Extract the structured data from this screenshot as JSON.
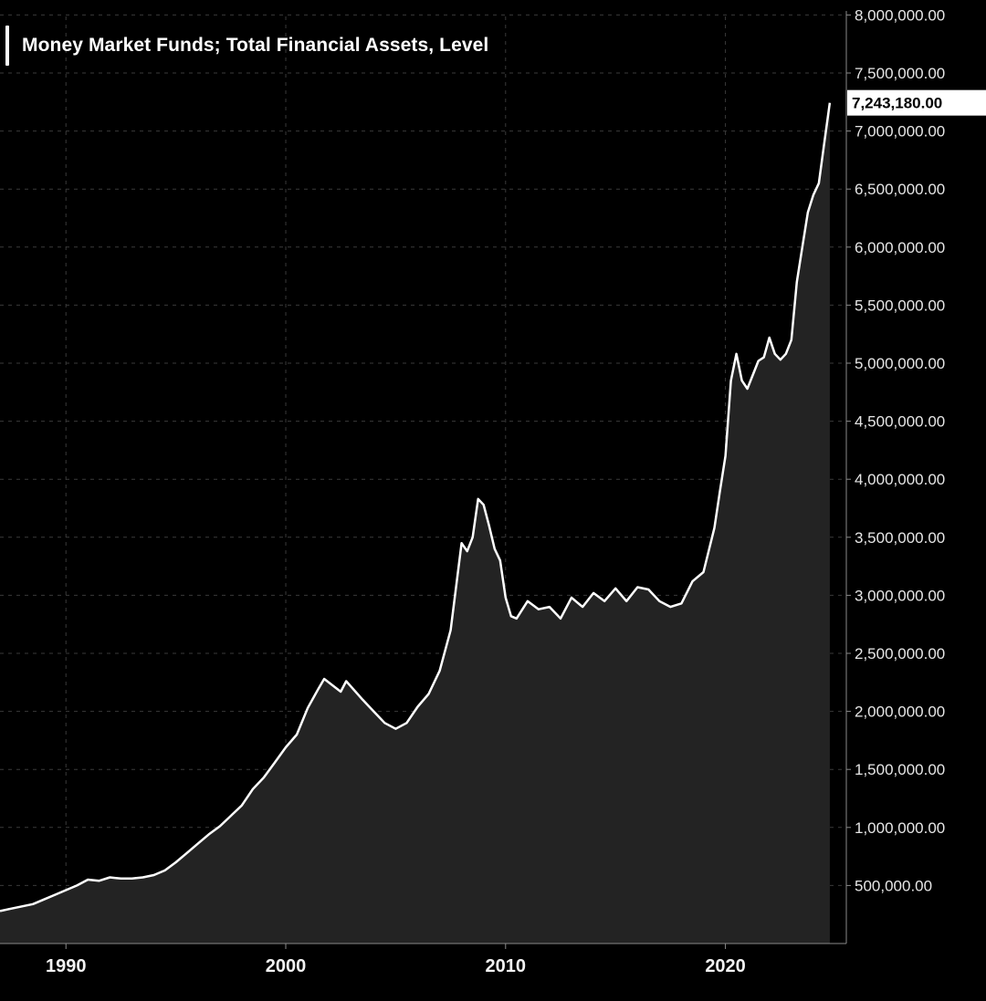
{
  "chart_data": {
    "type": "area",
    "title": "Money Market Funds; Total Financial Assets, Level",
    "xlabel": "",
    "ylabel": "",
    "xlim": [
      1987.0,
      2025.5
    ],
    "ylim": [
      0,
      8000000
    ],
    "grid": true,
    "legend_position": "top-left",
    "line_color": "#ffffff",
    "fill_color": "#232323",
    "background_color": "#000000",
    "last_value_label": "7,243,180.00",
    "x_ticks": [
      {
        "value": 1990,
        "label": "1990"
      },
      {
        "value": 2000,
        "label": "2000"
      },
      {
        "value": 2010,
        "label": "2010"
      },
      {
        "value": 2020,
        "label": "2020"
      }
    ],
    "y_ticks": [
      {
        "value": 500000,
        "label": "500,000.00"
      },
      {
        "value": 1000000,
        "label": "1,000,000.00"
      },
      {
        "value": 1500000,
        "label": "1,500,000.00"
      },
      {
        "value": 2000000,
        "label": "2,000,000.00"
      },
      {
        "value": 2500000,
        "label": "2,500,000.00"
      },
      {
        "value": 3000000,
        "label": "3,000,000.00"
      },
      {
        "value": 3500000,
        "label": "3,500,000.00"
      },
      {
        "value": 4000000,
        "label": "4,000,000.00"
      },
      {
        "value": 4500000,
        "label": "4,500,000.00"
      },
      {
        "value": 5000000,
        "label": "5,000,000.00"
      },
      {
        "value": 5500000,
        "label": "5,500,000.00"
      },
      {
        "value": 6000000,
        "label": "6,000,000.00"
      },
      {
        "value": 6500000,
        "label": "6,500,000.00"
      },
      {
        "value": 7000000,
        "label": "7,000,000.00"
      },
      {
        "value": 7500000,
        "label": "7,500,000.00"
      },
      {
        "value": 8000000,
        "label": "8,000,000.00"
      }
    ],
    "series": [
      {
        "name": "Money Market Funds; Total Financial Assets, Level",
        "x": [
          1987.0,
          1987.5,
          1988.0,
          1988.5,
          1989.0,
          1989.5,
          1990.0,
          1990.5,
          1991.0,
          1991.5,
          1992.0,
          1992.5,
          1993.0,
          1993.5,
          1994.0,
          1994.5,
          1995.0,
          1995.5,
          1996.0,
          1996.5,
          1997.0,
          1997.5,
          1998.0,
          1998.5,
          1999.0,
          1999.5,
          2000.0,
          2000.5,
          2001.0,
          2001.5,
          2001.75,
          2002.5,
          2002.75,
          2003.5,
          2004.0,
          2004.5,
          2005.0,
          2005.5,
          2006.0,
          2006.5,
          2007.0,
          2007.5,
          2008.0,
          2008.25,
          2008.5,
          2008.75,
          2009.0,
          2009.25,
          2009.5,
          2009.75,
          2010.0,
          2010.25,
          2010.5,
          2011.0,
          2011.5,
          2012.0,
          2012.5,
          2013.0,
          2013.5,
          2014.0,
          2014.5,
          2015.0,
          2015.5,
          2016.0,
          2016.5,
          2017.0,
          2017.5,
          2018.0,
          2018.5,
          2019.0,
          2019.5,
          2019.75,
          2020.0,
          2020.25,
          2020.5,
          2020.75,
          2021.0,
          2021.5,
          2021.75,
          2022.0,
          2022.25,
          2022.5,
          2022.75,
          2023.0,
          2023.25,
          2023.5,
          2023.75,
          2024.0,
          2024.25,
          2024.5,
          2024.75
        ],
        "values": [
          280000,
          300000,
          320000,
          340000,
          380000,
          420000,
          460000,
          500000,
          550000,
          540000,
          570000,
          560000,
          560000,
          570000,
          590000,
          630000,
          700000,
          780000,
          860000,
          940000,
          1010000,
          1100000,
          1190000,
          1330000,
          1430000,
          1560000,
          1690000,
          1800000,
          2030000,
          2200000,
          2280000,
          2170000,
          2260000,
          2100000,
          2000000,
          1900000,
          1850000,
          1900000,
          2040000,
          2150000,
          2350000,
          2700000,
          3450000,
          3380000,
          3500000,
          3830000,
          3780000,
          3600000,
          3400000,
          3300000,
          2980000,
          2820000,
          2800000,
          2950000,
          2880000,
          2900000,
          2800000,
          2980000,
          2900000,
          3020000,
          2950000,
          3060000,
          2950000,
          3070000,
          3050000,
          2950000,
          2900000,
          2930000,
          3120000,
          3200000,
          3580000,
          3900000,
          4200000,
          4850000,
          5080000,
          4850000,
          4780000,
          5020000,
          5050000,
          5220000,
          5080000,
          5030000,
          5080000,
          5200000,
          5700000,
          6000000,
          6300000,
          6450000,
          6550000,
          6900000,
          7243180
        ]
      }
    ]
  }
}
